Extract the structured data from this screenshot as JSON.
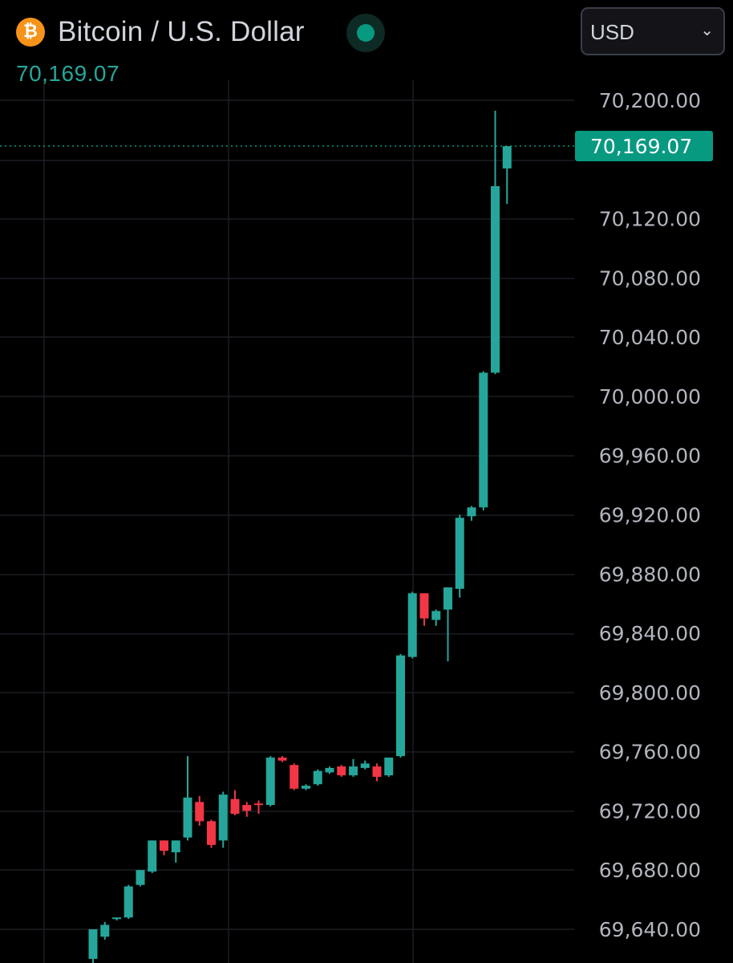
{
  "header": {
    "icon_symbol": "₿",
    "icon_name": "bitcoin-icon",
    "pair_title": "Bitcoin / U.S. Dollar",
    "last_price": "70,169.07",
    "live_status_color": "#089981"
  },
  "currency_select": {
    "value": "USD",
    "chevron": "⌄"
  },
  "colors": {
    "up": "#26a69a",
    "down": "#f23645",
    "background": "#000000",
    "grid": "#1c1e24",
    "axis_text": "#b2b5be",
    "price_tag": "#089981"
  },
  "chart_data": {
    "type": "candlestick",
    "title": "Bitcoin / U.S. Dollar",
    "currency": "USD",
    "y_ticks": [
      "70,200.00",
      "70,120.00",
      "70,080.00",
      "70,040.00",
      "70,000.00",
      "69,960.00",
      "69,920.00",
      "69,880.00",
      "69,840.00",
      "69,800.00",
      "69,760.00",
      "69,720.00",
      "69,680.00",
      "69,640.00"
    ],
    "y_tick_values": [
      70200,
      70120,
      70080,
      70040,
      70000,
      69960,
      69920,
      69880,
      69840,
      69800,
      69760,
      69720,
      69680,
      69640
    ],
    "ylim": [
      69630,
      70213
    ],
    "grid": true,
    "last_price": 70169.07,
    "last_price_label": "70,169.07",
    "candles": [
      {
        "o": 69620,
        "h": 69640,
        "l": 69615,
        "c": 69640
      },
      {
        "o": 69635,
        "h": 69645,
        "l": 69633,
        "c": 69643
      },
      {
        "o": 69647,
        "h": 69648,
        "l": 69646,
        "c": 69648
      },
      {
        "o": 69648,
        "h": 69670,
        "l": 69647,
        "c": 69669
      },
      {
        "o": 69670,
        "h": 69680,
        "l": 69669,
        "c": 69680
      },
      {
        "o": 69679,
        "h": 69700,
        "l": 69678,
        "c": 69700
      },
      {
        "o": 69700,
        "h": 69700,
        "l": 69690,
        "c": 69693
      },
      {
        "o": 69692,
        "h": 69700,
        "l": 69685,
        "c": 69700
      },
      {
        "o": 69702,
        "h": 69757,
        "l": 69700,
        "c": 69729
      },
      {
        "o": 69726,
        "h": 69730,
        "l": 69710,
        "c": 69713
      },
      {
        "o": 69713,
        "h": 69714,
        "l": 69695,
        "c": 69697
      },
      {
        "o": 69700,
        "h": 69733,
        "l": 69695,
        "c": 69731
      },
      {
        "o": 69728,
        "h": 69734,
        "l": 69717,
        "c": 69718
      },
      {
        "o": 69724,
        "h": 69726,
        "l": 69716,
        "c": 69720
      },
      {
        "o": 69725,
        "h": 69727,
        "l": 69718,
        "c": 69724
      },
      {
        "o": 69724,
        "h": 69757,
        "l": 69723,
        "c": 69756
      },
      {
        "o": 69756,
        "h": 69757,
        "l": 69753,
        "c": 69754
      },
      {
        "o": 69751,
        "h": 69752,
        "l": 69734,
        "c": 69735
      },
      {
        "o": 69735,
        "h": 69738,
        "l": 69734,
        "c": 69737
      },
      {
        "o": 69738,
        "h": 69748,
        "l": 69737,
        "c": 69747
      },
      {
        "o": 69746,
        "h": 69750,
        "l": 69745,
        "c": 69749
      },
      {
        "o": 69750,
        "h": 69751,
        "l": 69743,
        "c": 69744
      },
      {
        "o": 69744,
        "h": 69755,
        "l": 69743,
        "c": 69750
      },
      {
        "o": 69749,
        "h": 69754,
        "l": 69748,
        "c": 69752
      },
      {
        "o": 69750,
        "h": 69752,
        "l": 69740,
        "c": 69743
      },
      {
        "o": 69744,
        "h": 69756,
        "l": 69743,
        "c": 69756
      },
      {
        "o": 69757,
        "h": 69826,
        "l": 69756,
        "c": 69825
      },
      {
        "o": 69824,
        "h": 69868,
        "l": 69823,
        "c": 69867
      },
      {
        "o": 69867,
        "h": 69867,
        "l": 69845,
        "c": 69850
      },
      {
        "o": 69849,
        "h": 69856,
        "l": 69845,
        "c": 69855
      },
      {
        "o": 69856,
        "h": 69871,
        "l": 69821,
        "c": 69871
      },
      {
        "o": 69870,
        "h": 69920,
        "l": 69864,
        "c": 69918
      },
      {
        "o": 69919,
        "h": 69926,
        "l": 69916,
        "c": 69925
      },
      {
        "o": 69925,
        "h": 70017,
        "l": 69923,
        "c": 70016
      },
      {
        "o": 70016,
        "h": 70193,
        "l": 70015,
        "c": 70142
      },
      {
        "o": 70154,
        "h": 70169,
        "l": 70130,
        "c": 70169
      }
    ]
  }
}
